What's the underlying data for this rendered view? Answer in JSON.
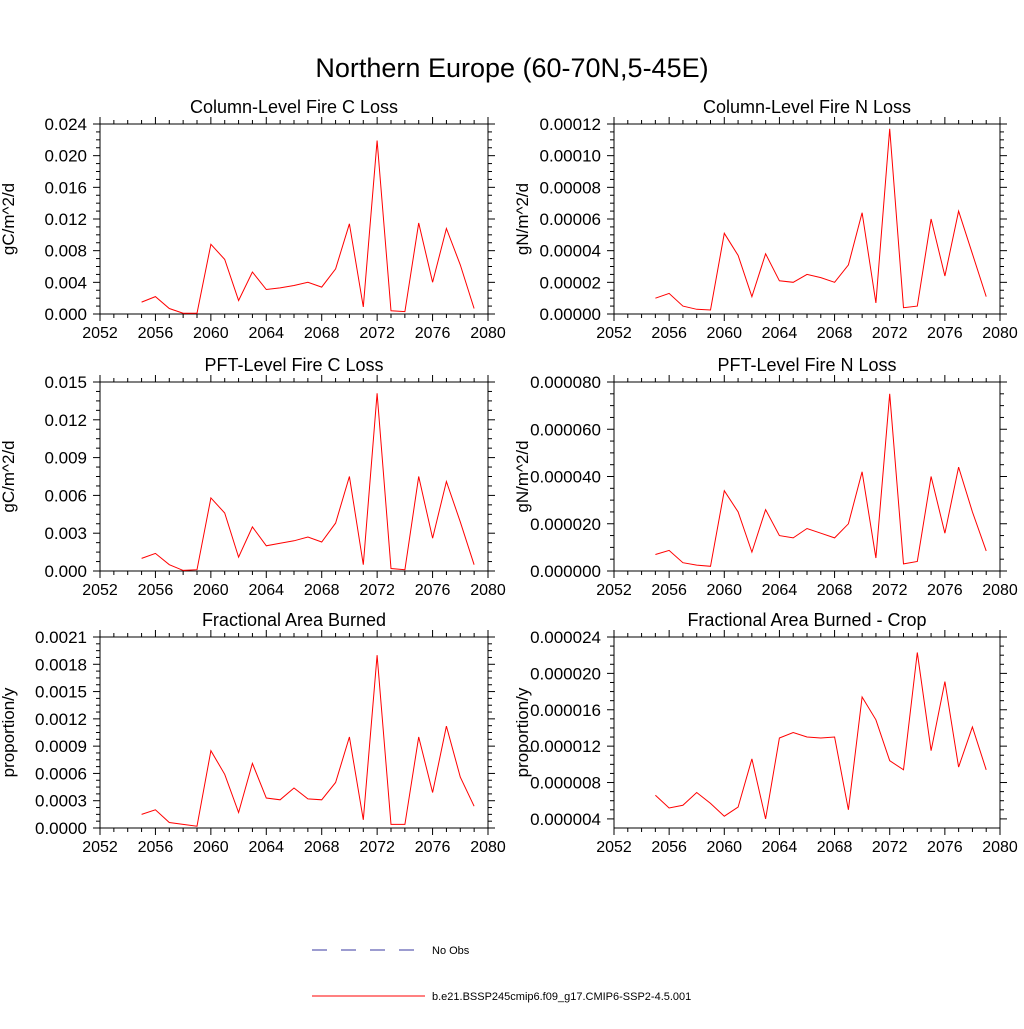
{
  "figure": {
    "title": "Northern Europe (60-70N,5-45E)"
  },
  "legend": {
    "obs_label": "No Obs",
    "obs_color": "#3a3aa0",
    "model_label": "b.e21.BSSP245cmip6.f09_g17.CMIP6-SSP2-4.5.001",
    "model_color": "#ff0000"
  },
  "chart_data": [
    {
      "type": "line",
      "title": "Column-Level Fire C Loss",
      "ylabel": "gC/m^2/d",
      "xlim": [
        2052,
        2080
      ],
      "xticks": [
        "2052",
        "2056",
        "2060",
        "2064",
        "2068",
        "2072",
        "2076",
        "2080"
      ],
      "ylim": [
        0,
        0.024
      ],
      "yticks": [
        "0.000",
        "0.004",
        "0.008",
        "0.012",
        "0.016",
        "0.020",
        "0.024"
      ],
      "series": [
        {
          "color": "#ff0000",
          "x": [
            2055,
            2056,
            2057,
            2058,
            2059,
            2060,
            2061,
            2062,
            2063,
            2064,
            2065,
            2066,
            2067,
            2068,
            2069,
            2070,
            2071,
            2072,
            2073,
            2074,
            2075,
            2076,
            2077,
            2078,
            2079
          ],
          "y": [
            0.0015,
            0.0022,
            0.0007,
            0.0001,
            0.0001,
            0.0088,
            0.0069,
            0.0017,
            0.0053,
            0.0031,
            0.0033,
            0.0036,
            0.004,
            0.0034,
            0.0057,
            0.0114,
            0.0009,
            0.0219,
            0.0004,
            0.0003,
            0.0115,
            0.004,
            0.0108,
            0.0062,
            0.0007
          ]
        }
      ]
    },
    {
      "type": "line",
      "title": "Column-Level Fire N Loss",
      "ylabel": "gN/m^2/d",
      "xlim": [
        2052,
        2080
      ],
      "xticks": [
        "2052",
        "2056",
        "2060",
        "2064",
        "2068",
        "2072",
        "2076",
        "2080"
      ],
      "ylim": [
        0,
        0.00012
      ],
      "yticks": [
        "0.00000",
        "0.00002",
        "0.00004",
        "0.00006",
        "0.00008",
        "0.00010",
        "0.00012"
      ],
      "series": [
        {
          "color": "#ff0000",
          "x": [
            2055,
            2056,
            2057,
            2058,
            2059,
            2060,
            2061,
            2062,
            2063,
            2064,
            2065,
            2066,
            2067,
            2068,
            2069,
            2070,
            2071,
            2072,
            2073,
            2074,
            2075,
            2076,
            2077,
            2078,
            2079
          ],
          "y": [
            1e-05,
            1.3e-05,
            5e-06,
            3e-06,
            2.5e-06,
            5.1e-05,
            3.7e-05,
            1.1e-05,
            3.8e-05,
            2.1e-05,
            2e-05,
            2.5e-05,
            2.3e-05,
            2e-05,
            3.1e-05,
            6.4e-05,
            7e-06,
            0.000117,
            4e-06,
            5e-06,
            6e-05,
            2.4e-05,
            6.5e-05,
            3.8e-05,
            1.1e-05
          ]
        }
      ]
    },
    {
      "type": "line",
      "title": "PFT-Level Fire C Loss",
      "ylabel": "gC/m^2/d",
      "xlim": [
        2052,
        2080
      ],
      "xticks": [
        "2052",
        "2056",
        "2060",
        "2064",
        "2068",
        "2072",
        "2076",
        "2080"
      ],
      "ylim": [
        0,
        0.015
      ],
      "yticks": [
        "0.000",
        "0.003",
        "0.006",
        "0.009",
        "0.012",
        "0.015"
      ],
      "series": [
        {
          "color": "#ff0000",
          "x": [
            2055,
            2056,
            2057,
            2058,
            2059,
            2060,
            2061,
            2062,
            2063,
            2064,
            2065,
            2066,
            2067,
            2068,
            2069,
            2070,
            2071,
            2072,
            2073,
            2074,
            2075,
            2076,
            2077,
            2078,
            2079
          ],
          "y": [
            0.001,
            0.0014,
            0.0005,
            5e-05,
            0.0001,
            0.0058,
            0.0046,
            0.0011,
            0.0035,
            0.002,
            0.0022,
            0.0024,
            0.0027,
            0.0023,
            0.0038,
            0.0075,
            0.0005,
            0.0141,
            0.0002,
            0.0001,
            0.0075,
            0.0026,
            0.0071,
            0.0039,
            0.0005
          ]
        }
      ]
    },
    {
      "type": "line",
      "title": "PFT-Level Fire N Loss",
      "ylabel": "gN/m^2/d",
      "xlim": [
        2052,
        2080
      ],
      "xticks": [
        "2052",
        "2056",
        "2060",
        "2064",
        "2068",
        "2072",
        "2076",
        "2080"
      ],
      "ylim": [
        0,
        8e-05
      ],
      "yticks": [
        "0.000000",
        "0.000020",
        "0.000040",
        "0.000060",
        "0.000080"
      ],
      "series": [
        {
          "color": "#ff0000",
          "x": [
            2055,
            2056,
            2057,
            2058,
            2059,
            2060,
            2061,
            2062,
            2063,
            2064,
            2065,
            2066,
            2067,
            2068,
            2069,
            2070,
            2071,
            2072,
            2073,
            2074,
            2075,
            2076,
            2077,
            2078,
            2079
          ],
          "y": [
            7e-06,
            8.7e-06,
            3.5e-06,
            2.5e-06,
            2e-06,
            3.4e-05,
            2.5e-05,
            8e-06,
            2.6e-05,
            1.5e-05,
            1.4e-05,
            1.8e-05,
            1.6e-05,
            1.4e-05,
            2e-05,
            4.2e-05,
            5.5e-06,
            7.5e-05,
            3e-06,
            4e-06,
            4e-05,
            1.6e-05,
            4.4e-05,
            2.5e-05,
            8.5e-06
          ]
        }
      ]
    },
    {
      "type": "line",
      "title": "Fractional Area Burned",
      "ylabel": "proportion/y",
      "xlim": [
        2052,
        2080
      ],
      "xticks": [
        "2052",
        "2056",
        "2060",
        "2064",
        "2068",
        "2072",
        "2076",
        "2080"
      ],
      "ylim": [
        0,
        0.0021
      ],
      "yticks": [
        "0.0000",
        "0.0003",
        "0.0006",
        "0.0009",
        "0.0012",
        "0.0015",
        "0.0018",
        "0.0021"
      ],
      "series": [
        {
          "color": "#ff0000",
          "x": [
            2055,
            2056,
            2057,
            2058,
            2059,
            2060,
            2061,
            2062,
            2063,
            2064,
            2065,
            2066,
            2067,
            2068,
            2069,
            2070,
            2071,
            2072,
            2073,
            2074,
            2075,
            2076,
            2077,
            2078,
            2079
          ],
          "y": [
            0.00015,
            0.0002,
            6e-05,
            4e-05,
            2e-05,
            0.00085,
            0.00059,
            0.00017,
            0.00071,
            0.00033,
            0.00031,
            0.00044,
            0.00032,
            0.00031,
            0.0005,
            0.001,
            9e-05,
            0.0019,
            4e-05,
            4e-05,
            0.001,
            0.00039,
            0.00112,
            0.00056,
            0.00024
          ]
        }
      ]
    },
    {
      "type": "line",
      "title": "Fractional Area Burned - Crop",
      "ylabel": "proportion/y",
      "xlim": [
        2052,
        2080
      ],
      "xticks": [
        "2052",
        "2056",
        "2060",
        "2064",
        "2068",
        "2072",
        "2076",
        "2080"
      ],
      "ylim": [
        3e-06,
        2.4e-05
      ],
      "yticks": [
        "0.000004",
        "0.000008",
        "0.000012",
        "0.000016",
        "0.000020",
        "0.000024"
      ],
      "yticksValues": [
        4e-06,
        8e-06,
        1.2e-05,
        1.6e-05,
        2e-05,
        2.4e-05
      ],
      "series": [
        {
          "color": "#ff0000",
          "x": [
            2055,
            2056,
            2057,
            2058,
            2059,
            2060,
            2061,
            2062,
            2063,
            2064,
            2065,
            2066,
            2067,
            2068,
            2069,
            2070,
            2071,
            2072,
            2073,
            2074,
            2075,
            2076,
            2077,
            2078,
            2079
          ],
          "y": [
            6.6e-06,
            5.2e-06,
            5.5e-06,
            6.9e-06,
            5.7e-06,
            4.3e-06,
            5.3e-06,
            1.06e-05,
            4e-06,
            1.29e-05,
            1.35e-05,
            1.3e-05,
            1.29e-05,
            1.3e-05,
            5e-06,
            1.74e-05,
            1.49e-05,
            1.04e-05,
            9.4e-06,
            2.23e-05,
            1.15e-05,
            1.91e-05,
            9.7e-06,
            1.41e-05,
            9.4e-06
          ]
        }
      ]
    }
  ]
}
